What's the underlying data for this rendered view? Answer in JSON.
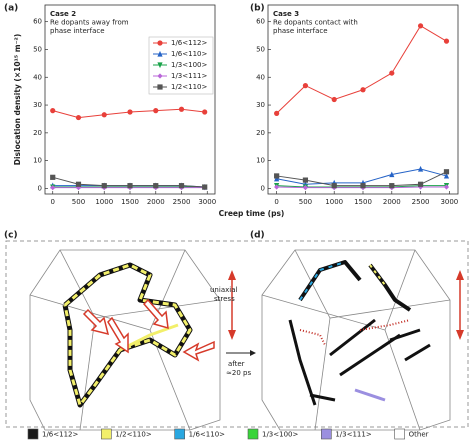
{
  "chart_data": [
    {
      "type": "line",
      "label": "(a)",
      "annotations": [
        "Case 2",
        "Re dopants away from",
        "phase interface"
      ],
      "xlabel": "Creep time (ps)",
      "ylabel": "Dislocation density (×10¹⁵ m⁻²)",
      "x": [
        0,
        500,
        1000,
        1500,
        2000,
        2500,
        2950
      ],
      "series": [
        {
          "name": "1/6<112>",
          "color": "#e8403a",
          "marker": "circle",
          "values": [
            28,
            25.5,
            26.5,
            27.5,
            28,
            28.5,
            27.5
          ]
        },
        {
          "name": "1/6<110>",
          "color": "#2563c7",
          "marker": "triangle-up",
          "values": [
            1,
            1,
            1,
            1,
            1,
            1,
            0.5
          ]
        },
        {
          "name": "1/3<100>",
          "color": "#1aa34a",
          "marker": "triangle-down",
          "values": [
            0.5,
            0.5,
            0.5,
            0.5,
            0.5,
            0.5,
            0.5
          ]
        },
        {
          "name": "1/3<111>",
          "color": "#b966d8",
          "marker": "diamond",
          "values": [
            0.3,
            0.3,
            0.3,
            0.3,
            0.3,
            0.3,
            0.3
          ]
        },
        {
          "name": "1/2<110>",
          "color": "#555555",
          "marker": "square",
          "values": [
            4,
            1.5,
            1,
            1,
            1,
            1,
            0.5
          ]
        }
      ],
      "xlim": [
        -150,
        3150
      ],
      "ylim": [
        -2,
        66
      ],
      "xticks": [
        0,
        500,
        1000,
        1500,
        2000,
        2500,
        3000
      ],
      "yticks": [
        0,
        10,
        20,
        30,
        40,
        50,
        60
      ],
      "legend": "upper right",
      "grid": false
    },
    {
      "type": "line",
      "label": "(b)",
      "annotations": [
        "Case 3",
        "Re dopants contact with",
        "phase interface"
      ],
      "x": [
        0,
        500,
        1000,
        1500,
        2000,
        2500,
        2950
      ],
      "series": [
        {
          "color": "#e8403a",
          "marker": "circle",
          "values": [
            27,
            37,
            32,
            35.5,
            41.5,
            58.5,
            53
          ]
        },
        {
          "color": "#2563c7",
          "marker": "triangle-up",
          "values": [
            3.5,
            1.5,
            2,
            2,
            5,
            7,
            4.5
          ]
        },
        {
          "color": "#1aa34a",
          "marker": "triangle-down",
          "values": [
            1,
            0.5,
            0.5,
            0.5,
            0.5,
            1,
            1
          ]
        },
        {
          "color": "#b966d8",
          "marker": "diamond",
          "values": [
            0.5,
            0.3,
            0.3,
            0.3,
            0.3,
            0.5,
            0.5
          ]
        },
        {
          "color": "#555555",
          "marker": "square",
          "values": [
            4.5,
            3,
            1,
            1,
            1,
            1.5,
            6
          ]
        }
      ],
      "xlim": [
        -150,
        3150
      ],
      "ylim": [
        -2,
        66
      ],
      "xticks": [
        0,
        500,
        1000,
        1500,
        2000,
        2500,
        3000
      ],
      "yticks": [
        0,
        10,
        20,
        30,
        40,
        50,
        60
      ],
      "grid": false
    }
  ],
  "illustration": {
    "labels": [
      "(c)",
      "(d)"
    ],
    "stress": [
      "uniaxial",
      "stress"
    ],
    "transition": [
      "after",
      "≈20 ps"
    ],
    "legend": [
      {
        "label": "1/6<112>",
        "color": "#1a1a1a"
      },
      {
        "label": "1/2<110>",
        "color": "#f2ef6a"
      },
      {
        "label": "1/6<110>",
        "color": "#2aa7e0"
      },
      {
        "label": "1/3<100>",
        "color": "#39d53a"
      },
      {
        "label": "1/3<111>",
        "color": "#9b8fe0"
      },
      {
        "label": "Other",
        "color": "#ffffff"
      }
    ]
  }
}
